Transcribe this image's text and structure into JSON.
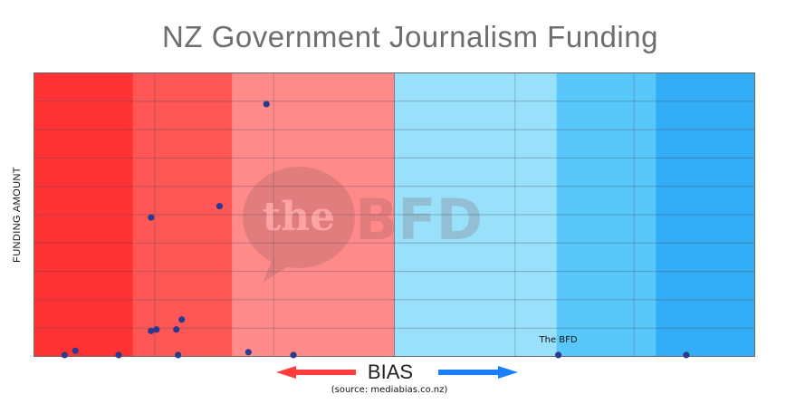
{
  "chart_data": {
    "type": "scatter",
    "title": "NZ Government Journalism Funding",
    "ylabel": "FUNDING AMOUNT",
    "xlabel": "BIAS",
    "source": "(source: mediabias.co.nz)",
    "watermark": "theBFD",
    "xlim": [
      -1,
      1
    ],
    "ylim": [
      0,
      10
    ],
    "grid": true,
    "bands": [
      {
        "from": -1.0,
        "to": -0.725,
        "color": "#ff3333"
      },
      {
        "from": -0.725,
        "to": -0.45,
        "color": "#ff5656"
      },
      {
        "from": -0.45,
        "to": 0.0,
        "color": "#ff8a8a"
      },
      {
        "from": 0.0,
        "to": 0.45,
        "color": "#99e0fb"
      },
      {
        "from": 0.45,
        "to": 0.725,
        "color": "#58c8fb"
      },
      {
        "from": 0.725,
        "to": 1.0,
        "color": "#33adf5"
      }
    ],
    "points": [
      {
        "x": -0.355,
        "y": 8.9
      },
      {
        "x": -0.485,
        "y": 5.3
      },
      {
        "x": -0.675,
        "y": 4.9
      },
      {
        "x": -0.885,
        "y": 0.2
      },
      {
        "x": -0.765,
        "y": 0.05
      },
      {
        "x": -0.915,
        "y": 0.05
      },
      {
        "x": -0.675,
        "y": 0.9
      },
      {
        "x": -0.66,
        "y": 0.95
      },
      {
        "x": -0.605,
        "y": 0.95
      },
      {
        "x": -0.59,
        "y": 1.3
      },
      {
        "x": -0.6,
        "y": 0.05
      },
      {
        "x": -0.405,
        "y": 0.15
      },
      {
        "x": -0.28,
        "y": 0.05
      },
      {
        "x": 0.455,
        "y": 0.05
      },
      {
        "x": 0.81,
        "y": 0.05
      }
    ],
    "annotations": [
      {
        "text": "The BFD",
        "x": 0.455,
        "y": 0.05
      }
    ],
    "point_color": "#2b3a8c",
    "arrow_left_color": "#ff3b3b",
    "arrow_right_color": "#1a7fff"
  }
}
